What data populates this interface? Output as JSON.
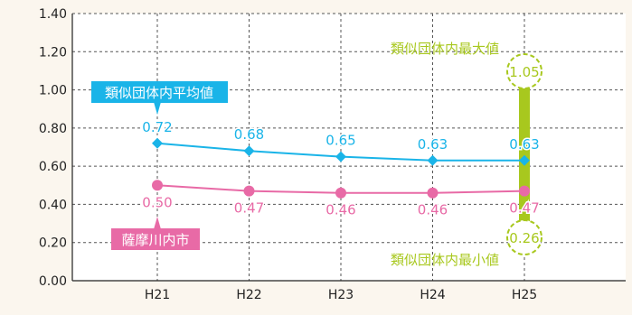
{
  "chart_data": {
    "type": "line",
    "categories": [
      "H21",
      "H22",
      "H23",
      "H24",
      "H25"
    ],
    "ylim": [
      0,
      1.4
    ],
    "yticks": [
      "0.00",
      "0.20",
      "0.40",
      "0.60",
      "0.80",
      "1.00",
      "1.20",
      "1.40"
    ],
    "grid": true,
    "series": [
      {
        "name": "類似団体内平均値",
        "values": [
          0.72,
          0.68,
          0.65,
          0.63,
          0.63
        ],
        "labels": [
          "0.72",
          "0.68",
          "0.65",
          "0.63",
          "0.63"
        ],
        "color": "#1ab4e8"
      },
      {
        "name": "薩摩川内市",
        "values": [
          0.5,
          0.47,
          0.46,
          0.46,
          0.47
        ],
        "labels": [
          "0.50",
          "0.47",
          "0.46",
          "0.46",
          "0.47"
        ],
        "color": "#e86aa6"
      }
    ],
    "range_bar": {
      "category": "H25",
      "max": 1.05,
      "min": 0.26,
      "max_label": "1.05",
      "min_label": "0.26",
      "max_title": "類似団体内最大値",
      "min_title": "類似団体内最小値",
      "color": "#a8c81e"
    }
  }
}
